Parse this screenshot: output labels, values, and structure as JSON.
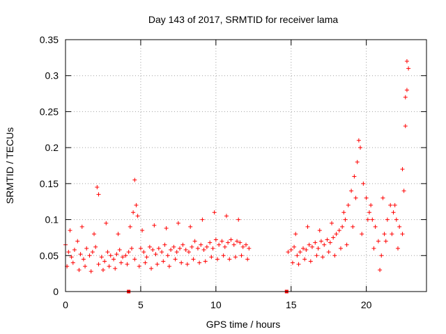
{
  "chart_data": {
    "type": "scatter",
    "title": "Day 143 of 2017, SRMTID for receiver lama",
    "xlabel": "GPS time / hours",
    "ylabel": "SRMTID / TECUs",
    "xlim": [
      0,
      24
    ],
    "ylim": [
      0,
      0.35
    ],
    "xticks": [
      0,
      5,
      10,
      15,
      20
    ],
    "xtick_labels": [
      "0",
      "5",
      "10",
      "15",
      "20"
    ],
    "yticks": [
      0,
      0.05,
      0.1,
      0.15,
      0.2,
      0.25,
      0.3,
      0.35
    ],
    "ytick_labels": [
      "0",
      "0.05",
      "0.1",
      "0.15",
      "0.2",
      "0.25",
      "0.3",
      "0.35"
    ],
    "grid": true,
    "marker": "+",
    "color": "#ff0000",
    "zero_markers": [
      4.2,
      14.7
    ],
    "series": [
      {
        "name": "SRMTID",
        "x": [
          0.0,
          0.2,
          0.4,
          0.6,
          0.8,
          1.0,
          1.2,
          1.4,
          1.6,
          1.8,
          2.0,
          2.1,
          2.2,
          2.4,
          2.6,
          2.8,
          3.0,
          3.2,
          3.4,
          3.6,
          3.8,
          4.0,
          4.2,
          4.4,
          4.5,
          4.6,
          4.7,
          4.8,
          5.0,
          5.2,
          5.4,
          5.6,
          5.8,
          6.0,
          6.2,
          6.4,
          6.6,
          6.8,
          7.0,
          7.2,
          7.4,
          7.6,
          7.8,
          8.0,
          8.2,
          8.4,
          8.6,
          8.8,
          9.0,
          9.2,
          9.4,
          9.6,
          9.8,
          10.0,
          10.2,
          10.4,
          10.6,
          10.8,
          11.0,
          11.2,
          11.4,
          11.6,
          11.8,
          12.0,
          12.2,
          14.8,
          15.0,
          15.2,
          15.4,
          15.6,
          15.8,
          16.0,
          16.2,
          16.4,
          16.6,
          16.8,
          17.0,
          17.2,
          17.4,
          17.6,
          17.8,
          18.0,
          18.2,
          18.4,
          18.6,
          18.8,
          19.0,
          19.2,
          19.4,
          19.5,
          19.6,
          19.8,
          20.0,
          20.2,
          20.4,
          20.6,
          20.8,
          21.0,
          21.2,
          21.4,
          21.6,
          21.8,
          22.0,
          22.2,
          22.4,
          22.5,
          22.6,
          22.7,
          22.8,
          0.1,
          0.5,
          0.9,
          1.3,
          1.7,
          2.2,
          2.5,
          2.9,
          3.3,
          3.7,
          4.1,
          4.6,
          4.9,
          5.3,
          5.7,
          6.1,
          6.5,
          6.9,
          7.3,
          7.7,
          8.1,
          8.5,
          8.9,
          9.3,
          9.7,
          10.1,
          10.5,
          10.9,
          11.3,
          11.7,
          12.1,
          15.1,
          15.5,
          15.9,
          16.3,
          16.7,
          17.1,
          17.5,
          17.9,
          18.3,
          18.7,
          19.1,
          19.7,
          20.1,
          20.5,
          20.9,
          21.3,
          21.7,
          22.1,
          22.6,
          22.7,
          0.3,
          1.1,
          1.9,
          2.7,
          3.5,
          4.3,
          5.1,
          5.9,
          6.7,
          7.5,
          8.3,
          9.1,
          9.9,
          10.7,
          11.5,
          15.3,
          16.1,
          16.9,
          17.7,
          18.5,
          19.3,
          20.3,
          21.1,
          21.9,
          22.4
        ],
        "y": [
          0.065,
          0.055,
          0.048,
          0.058,
          0.07,
          0.052,
          0.045,
          0.06,
          0.05,
          0.055,
          0.062,
          0.145,
          0.135,
          0.048,
          0.042,
          0.055,
          0.05,
          0.045,
          0.052,
          0.058,
          0.048,
          0.05,
          0.055,
          0.06,
          0.11,
          0.155,
          0.12,
          0.105,
          0.06,
          0.055,
          0.048,
          0.062,
          0.058,
          0.052,
          0.06,
          0.055,
          0.065,
          0.05,
          0.058,
          0.062,
          0.055,
          0.06,
          0.065,
          0.058,
          0.055,
          0.062,
          0.07,
          0.06,
          0.065,
          0.058,
          0.062,
          0.068,
          0.06,
          0.072,
          0.065,
          0.07,
          0.062,
          0.068,
          0.072,
          0.065,
          0.07,
          0.068,
          0.062,
          0.065,
          0.06,
          0.055,
          0.058,
          0.062,
          0.05,
          0.055,
          0.06,
          0.058,
          0.065,
          0.062,
          0.068,
          0.06,
          0.07,
          0.065,
          0.072,
          0.068,
          0.075,
          0.08,
          0.085,
          0.09,
          0.1,
          0.12,
          0.14,
          0.16,
          0.18,
          0.21,
          0.2,
          0.15,
          0.13,
          0.11,
          0.1,
          0.09,
          0.07,
          0.05,
          0.08,
          0.1,
          0.12,
          0.11,
          0.1,
          0.09,
          0.08,
          0.14,
          0.23,
          0.32,
          0.31,
          0.035,
          0.04,
          0.03,
          0.035,
          0.028,
          0.038,
          0.03,
          0.035,
          0.032,
          0.04,
          0.038,
          0.045,
          0.035,
          0.04,
          0.032,
          0.038,
          0.042,
          0.035,
          0.045,
          0.04,
          0.038,
          0.045,
          0.04,
          0.042,
          0.048,
          0.045,
          0.05,
          0.045,
          0.048,
          0.05,
          0.045,
          0.04,
          0.038,
          0.045,
          0.042,
          0.05,
          0.048,
          0.055,
          0.05,
          0.06,
          0.065,
          0.09,
          0.08,
          0.1,
          0.06,
          0.03,
          0.07,
          0.08,
          0.06,
          0.27,
          0.28,
          0.085,
          0.09,
          0.08,
          0.095,
          0.08,
          0.09,
          0.085,
          0.092,
          0.088,
          0.095,
          0.09,
          0.1,
          0.11,
          0.105,
          0.1,
          0.08,
          0.09,
          0.085,
          0.095,
          0.11,
          0.13,
          0.12,
          0.13,
          0.12,
          0.17
        ]
      }
    ]
  }
}
